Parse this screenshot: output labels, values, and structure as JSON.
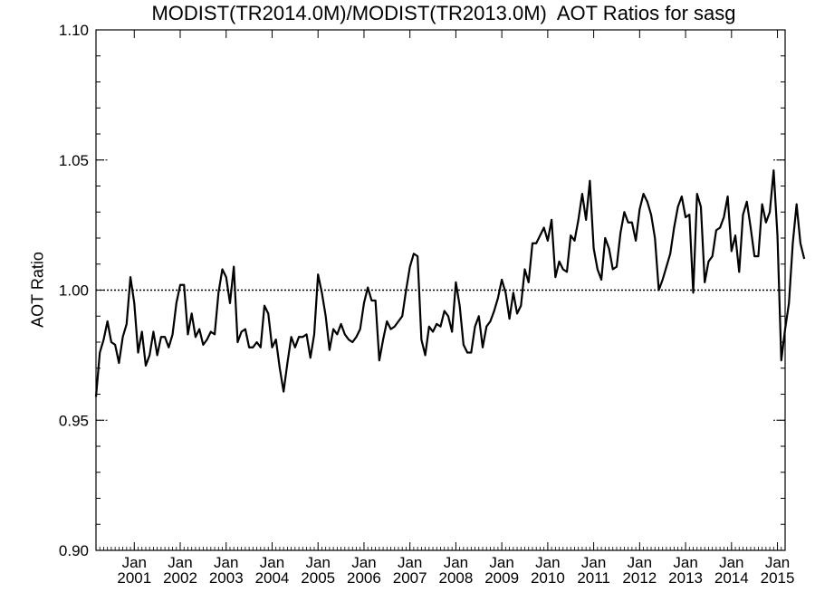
{
  "chart_data": {
    "type": "line",
    "title": "MODIST(TR2014.0M)/MODIST(TR2013.0M)  AOT Ratios for sasg",
    "xlabel": "",
    "ylabel": "AOT Ratio",
    "ylim": [
      0.9,
      1.1
    ],
    "xlim": [
      "2000-03",
      "2015-03"
    ],
    "y_ticks": [
      "0.90",
      "0.95",
      "1.00",
      "1.05",
      "1.10"
    ],
    "x_ticks": [
      {
        "month": "Jan",
        "year": "2001",
        "date": "2001-01"
      },
      {
        "month": "Jan",
        "year": "2002",
        "date": "2002-01"
      },
      {
        "month": "Jan",
        "year": "2003",
        "date": "2003-01"
      },
      {
        "month": "Jan",
        "year": "2004",
        "date": "2004-01"
      },
      {
        "month": "Jan",
        "year": "2005",
        "date": "2005-01"
      },
      {
        "month": "Jan",
        "year": "2006",
        "date": "2006-01"
      },
      {
        "month": "Jan",
        "year": "2007",
        "date": "2007-01"
      },
      {
        "month": "Jan",
        "year": "2008",
        "date": "2008-01"
      },
      {
        "month": "Jan",
        "year": "2009",
        "date": "2009-01"
      },
      {
        "month": "Jan",
        "year": "2010",
        "date": "2010-01"
      },
      {
        "month": "Jan",
        "year": "2011",
        "date": "2011-01"
      },
      {
        "month": "Jan",
        "year": "2012",
        "date": "2012-01"
      },
      {
        "month": "Jan",
        "year": "2013",
        "date": "2013-01"
      },
      {
        "month": "Jan",
        "year": "2014",
        "date": "2014-01"
      },
      {
        "month": "Jan",
        "year": "2015",
        "date": "2015-01"
      }
    ],
    "reference_line": 1.0,
    "dotted_gridlines": [
      0.95,
      1.0,
      1.05
    ],
    "series": [
      {
        "start_date": "2000-03",
        "frequency": "monthly",
        "values": [
          0.959,
          0.976,
          0.981,
          0.988,
          0.98,
          0.979,
          0.972,
          0.982,
          0.987,
          1.005,
          0.995,
          0.976,
          0.984,
          0.971,
          0.975,
          0.984,
          0.975,
          0.982,
          0.982,
          0.978,
          0.983,
          0.995,
          1.002,
          1.002,
          0.983,
          0.991,
          0.982,
          0.985,
          0.979,
          0.981,
          0.984,
          0.983,
          0.999,
          1.008,
          1.005,
          0.995,
          1.009,
          0.98,
          0.984,
          0.985,
          0.978,
          0.978,
          0.98,
          0.978,
          0.994,
          0.991,
          0.978,
          0.981,
          0.97,
          0.961,
          0.972,
          0.982,
          0.978,
          0.982,
          0.982,
          0.983,
          0.974,
          0.983,
          1.006,
          0.999,
          0.99,
          0.977,
          0.985,
          0.983,
          0.987,
          0.983,
          0.981,
          0.98,
          0.982,
          0.985,
          0.995,
          1.001,
          0.996,
          0.996,
          0.973,
          0.981,
          0.988,
          0.985,
          0.986,
          0.988,
          0.99,
          1.0,
          1.009,
          1.014,
          1.013,
          0.981,
          0.975,
          0.986,
          0.984,
          0.987,
          0.986,
          0.992,
          0.99,
          0.984,
          1.003,
          0.994,
          0.979,
          0.976,
          0.976,
          0.986,
          0.99,
          0.978,
          0.986,
          0.988,
          0.992,
          0.997,
          1.004,
          0.999,
          0.989,
          0.999,
          0.991,
          0.994,
          1.008,
          1.003,
          1.018,
          1.018,
          1.021,
          1.024,
          1.019,
          1.027,
          1.005,
          1.011,
          1.008,
          1.007,
          1.021,
          1.019,
          1.027,
          1.037,
          1.027,
          1.042,
          1.016,
          1.008,
          1.004,
          1.02,
          1.016,
          1.008,
          1.009,
          1.022,
          1.03,
          1.026,
          1.026,
          1.019,
          1.031,
          1.037,
          1.034,
          1.029,
          1.02,
          1.0,
          1.004,
          1.009,
          1.014,
          1.024,
          1.032,
          1.036,
          1.028,
          1.029,
          0.999,
          1.037,
          1.032,
          1.003,
          1.011,
          1.013,
          1.023,
          1.024,
          1.028,
          1.036,
          1.015,
          1.021,
          1.007,
          1.029,
          1.034,
          1.024,
          1.013,
          1.013,
          1.033,
          1.026,
          1.03,
          1.046,
          1.021,
          0.973,
          0.985,
          0.995,
          1.018,
          1.033,
          1.018,
          1.012
        ]
      }
    ]
  }
}
